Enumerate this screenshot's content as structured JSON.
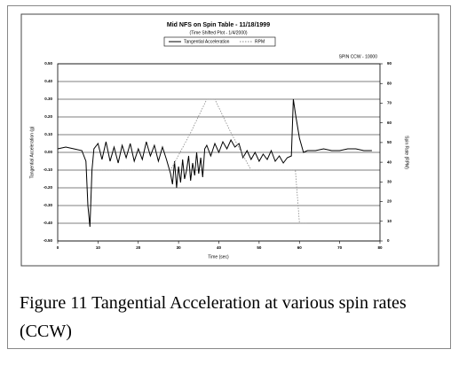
{
  "chart_data": {
    "type": "line",
    "title": "Mid NFS on Spin Table - 11/18/1999",
    "subtitle": "(Time Shifted Plot - 1/4/2000)",
    "annotation": "SPIN CCW - 10000",
    "x_label": "Time (sec)",
    "y_label": "Tangential Acceleration (g)",
    "y2_label": "Spin Rate (RPM)",
    "xlim": [
      0,
      80
    ],
    "xticks": [
      0,
      10,
      20,
      30,
      40,
      50,
      60,
      70,
      80
    ],
    "ylim": [
      -0.5,
      0.5
    ],
    "yticks": [
      {
        "value": -0.5,
        "label": "-0.50"
      },
      {
        "value": -0.4,
        "label": "-0.40"
      },
      {
        "value": -0.3,
        "label": "-0.30"
      },
      {
        "value": -0.2,
        "label": "-0.20"
      },
      {
        "value": -0.1,
        "label": "-0.10"
      },
      {
        "value": 0,
        "label": "0.00"
      },
      {
        "value": 0.1,
        "label": "0.10"
      },
      {
        "value": 0.2,
        "label": "0.20"
      },
      {
        "value": 0.3,
        "label": "0.30"
      },
      {
        "value": 0.4,
        "label": "0.40"
      },
      {
        "value": 0.5,
        "label": "0.50"
      }
    ],
    "y2lim": [
      0,
      90
    ],
    "y2ticks": [
      0,
      10,
      20,
      30,
      40,
      50,
      60,
      70,
      80,
      90
    ],
    "grid": true,
    "series": [
      {
        "name": "Tangential Acceleration",
        "color": "#000000",
        "axis": "y",
        "x": [
          0,
          2,
          4,
          6,
          7,
          7.5,
          8,
          8.5,
          9,
          10,
          11,
          12,
          13,
          14,
          15,
          16,
          17,
          18,
          19,
          20,
          21,
          22,
          23,
          24,
          25,
          26,
          27,
          28,
          28.5,
          29,
          29.5,
          30,
          30.5,
          31,
          31.5,
          32,
          32.5,
          33,
          33.5,
          34,
          34.5,
          35,
          35.5,
          36,
          36.5,
          37,
          38,
          39,
          40,
          41,
          42,
          43,
          44,
          45,
          46,
          47,
          48,
          49,
          50,
          51,
          52,
          53,
          54,
          55,
          56,
          57,
          58,
          58.5,
          59,
          59.5,
          60,
          61,
          62,
          64,
          66,
          68,
          70,
          72,
          74,
          76,
          78
        ],
        "values": [
          0.02,
          0.03,
          0.02,
          0.01,
          -0.05,
          -0.3,
          -0.42,
          -0.1,
          0.02,
          0.05,
          -0.04,
          0.06,
          -0.05,
          0.03,
          -0.06,
          0.04,
          -0.03,
          0.05,
          -0.05,
          0.02,
          -0.04,
          0.06,
          -0.02,
          0.04,
          -0.05,
          0.03,
          -0.04,
          -0.12,
          -0.18,
          -0.05,
          -0.2,
          -0.08,
          -0.17,
          -0.04,
          -0.15,
          -0.1,
          -0.02,
          -0.16,
          -0.06,
          -0.13,
          0.0,
          -0.12,
          -0.03,
          -0.14,
          0.02,
          0.04,
          -0.02,
          0.05,
          0.0,
          0.06,
          0.02,
          0.07,
          0.03,
          0.05,
          -0.03,
          0.01,
          -0.04,
          0.0,
          -0.05,
          -0.01,
          -0.04,
          0.01,
          -0.05,
          -0.02,
          -0.06,
          -0.03,
          -0.02,
          0.3,
          0.22,
          0.15,
          0.08,
          0.0,
          0.01,
          0.01,
          0.02,
          0.01,
          0.01,
          0.02,
          0.02,
          0.01,
          0.01
        ]
      },
      {
        "name": "RPM",
        "color": "#888888",
        "axis": "y2",
        "x": [
          8,
          28,
          33,
          37,
          39,
          43,
          48,
          59,
          60,
          62
        ],
        "values": [
          36,
          36,
          55,
          72,
          72,
          55,
          36,
          36,
          9,
          9
        ]
      }
    ]
  },
  "caption": "Figure 11  Tangential Acceleration at various spin rates (CCW)"
}
